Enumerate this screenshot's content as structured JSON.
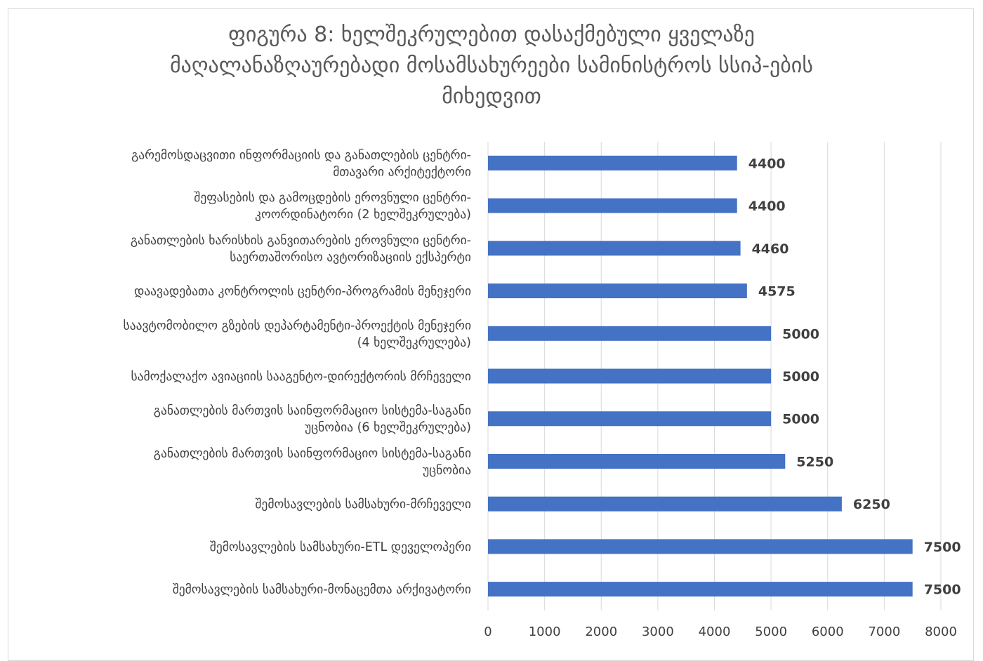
{
  "chart_data": {
    "type": "bar",
    "orientation": "horizontal",
    "title_lines": [
      "ფიგურა 8: ხელშეკრულებით დასაქმებული ყველაზე",
      "მაღალანაზღაურებადი მოსამსახურეები სამინისტროს  სსიპ-ების",
      "მიხედვით"
    ],
    "categories": [
      [
        "გარემოსდაცვითი ინფორმაციის და განათლების ცენტრი-",
        "მთავარი არქიტექტორი"
      ],
      [
        "შეფასების და გამოცდების ეროვნული ცენტრი-",
        "კოორდინატორი (2 ხელშეკრულება)"
      ],
      [
        "განათლების ხარისხის განვითარების ეროვნული ცენტრი-",
        "საერთაშორისო ავტორიზაციის ექსპერტი"
      ],
      [
        "დაავადებათა კონტროლის ცენტრი-პროგრამის მენეჯერი"
      ],
      [
        "საავტომობილო გზების დეპარტამენტი-პროექტის მენეჯერი",
        "(4 ხელშეკრულება)"
      ],
      [
        "სამოქალაქო ავიაციის სააგენტო-დირექტორის მრჩეველი"
      ],
      [
        "განათლების მართვის საინფორმაციო სისტემა-საგანი",
        "უცნობია (6 ხელშეკრულება)"
      ],
      [
        "განათლების მართვის საინფორმაციო სისტემა-საგანი",
        "უცნობია"
      ],
      [
        "შემოსავლების სამსახური-მრჩეველი"
      ],
      [
        "შემოსავლების სამსახური-ETL დეველოპერი"
      ],
      [
        "შემოსავლების სამსახური-მონაცემთა არქივატორი"
      ]
    ],
    "values": [
      4400,
      4400,
      4460,
      4575,
      5000,
      5000,
      5000,
      5250,
      6250,
      7500,
      7500
    ],
    "xlim": [
      0,
      8000
    ],
    "xticks": [
      0,
      1000,
      2000,
      3000,
      4000,
      5000,
      6000,
      7000,
      8000
    ],
    "grid": "vertical",
    "legend": "none",
    "bar_color": "#4472c4",
    "grid_color": "#d9d9d9",
    "text_color": "#404040",
    "title_color": "#595959"
  }
}
